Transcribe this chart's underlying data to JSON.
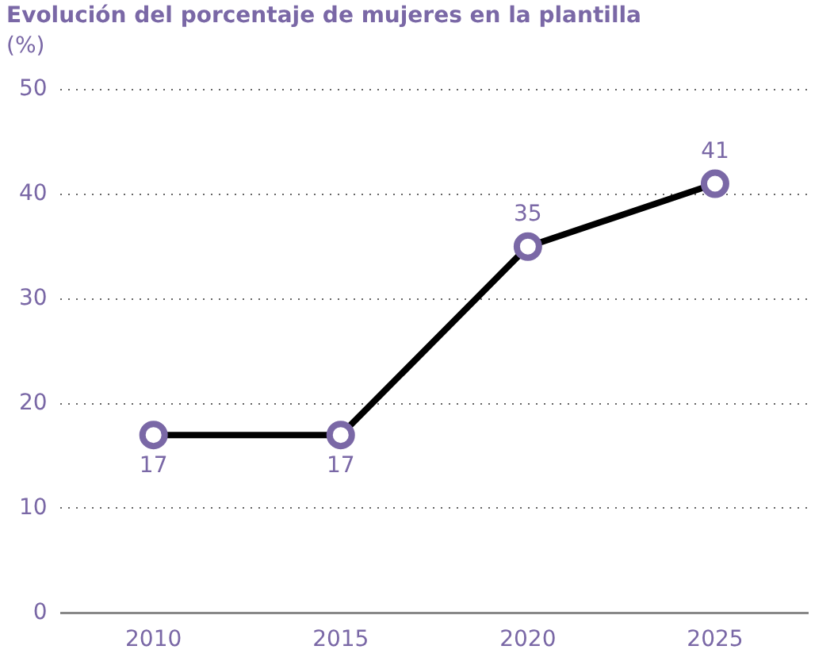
{
  "chart_data": {
    "type": "line",
    "title": "Evolución del porcentaje de mujeres en la plantilla",
    "ylabel": "(%)",
    "categories": [
      "2010",
      "2015",
      "2020",
      "2025"
    ],
    "series": [
      {
        "color": "#000000",
        "values": [
          17,
          17,
          35,
          41
        ]
      }
    ],
    "ylim": [
      0,
      50
    ],
    "yticks": [
      0,
      10,
      20,
      30,
      40,
      50
    ],
    "grid": "y",
    "legend": false,
    "marker": "circle",
    "line_style": "solid",
    "data_labels": true
  }
}
